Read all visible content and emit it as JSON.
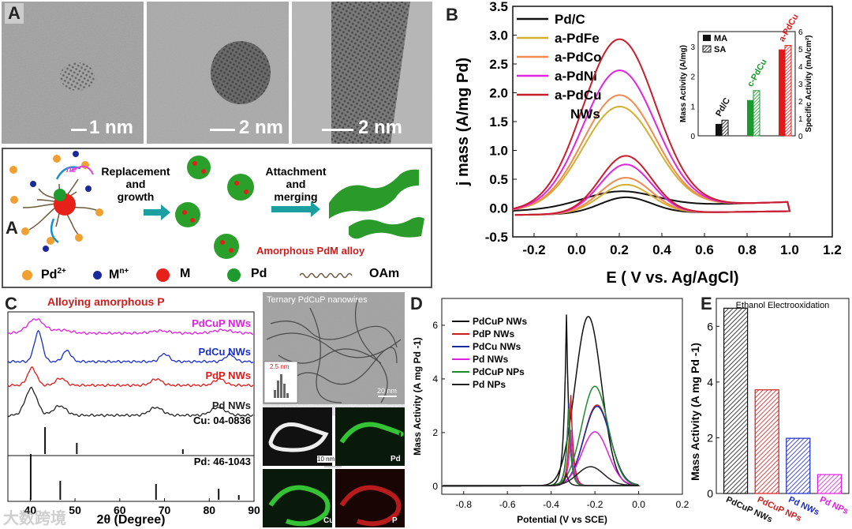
{
  "panel_labels": {
    "a": "A",
    "b": "B",
    "c": "C",
    "d": "D",
    "e": "E"
  },
  "panel_a": {
    "scale_bars": [
      "1 nm",
      "2 nm",
      "2 nm"
    ],
    "schematic": {
      "step1": "Replacement\nand\ngrowth",
      "step2": "Attachment\nand\nmerging",
      "electron": "ne",
      "product": "Amorphous PdM alloy",
      "legend": [
        {
          "symbol": "Pd",
          "sup": "2+",
          "color": "#f0a030"
        },
        {
          "symbol": "M",
          "sup": "n+",
          "color": "#1a2a9a"
        },
        {
          "symbol": "M",
          "sup": "",
          "color": "#e8201a"
        },
        {
          "symbol": "Pd",
          "sup": "",
          "color": "#1e9a2e"
        },
        {
          "symbol": "OAm",
          "sup": "",
          "color": "#6b5a3e"
        }
      ]
    }
  },
  "panel_c": {
    "header": "Alloying amorphous P",
    "traces": [
      {
        "name": "PdCuP NWs",
        "color": "#e020e0"
      },
      {
        "name": "PdCu NWs",
        "color": "#1a2ec8"
      },
      {
        "name": "PdP NWs",
        "color": "#e01a1a"
      },
      {
        "name": "Pd NWs",
        "color": "#222222"
      }
    ],
    "refs": [
      {
        "name": "Cu: 04-0836",
        "lines": [
          43.3,
          50.4,
          74.1
        ]
      },
      {
        "name": "Pd: 46-1043",
        "lines": [
          40.1,
          46.7,
          68.1,
          82.1,
          86.6
        ]
      }
    ],
    "xlabel": "2θ (Degree)",
    "xticks": [
      40,
      50,
      60,
      70,
      80,
      90
    ],
    "tem": {
      "title": "Ternary PdCuP nanowires",
      "hist_label": "2.5 nm",
      "scale": "20 nm",
      "map_scale": "10 nm",
      "maps": [
        "Pd",
        "Cu",
        "P"
      ]
    }
  },
  "chart_data": [
    {
      "id": "B",
      "type": "line",
      "xlabel": "E ( V vs. Ag/AgCl)",
      "ylabel": "j mass (A/mg Pd)",
      "xlim": [
        -0.3,
        1.2
      ],
      "ylim": [
        -0.5,
        3.5
      ],
      "xticks": [
        -0.2,
        0.0,
        0.2,
        0.4,
        0.6,
        0.8,
        1.0,
        1.2
      ],
      "yticks": [
        -0.5,
        0.0,
        0.5,
        1.0,
        1.5,
        2.0,
        2.5,
        3.0,
        3.5
      ],
      "legend": "top-left",
      "series": [
        {
          "name": "Pd/C",
          "color": "#111111",
          "peak": 0.28,
          "rev": 0.28
        },
        {
          "name": "a-PdFe",
          "color": "#d4b030",
          "peak": 1.75,
          "rev": 0.5
        },
        {
          "name": "a-PdCo",
          "color": "#f08a50",
          "peak": 1.95,
          "rev": 0.62
        },
        {
          "name": "a-PdNi",
          "color": "#e024e0",
          "peak": 2.38,
          "rev": 0.85
        },
        {
          "name": "a-PdCu",
          "color": "#c81e2e",
          "peak": 2.92,
          "rev": 1.0
        }
      ],
      "legend_extra": "NWs",
      "inset": {
        "type": "bar",
        "categories": [
          "Pd/C",
          "c-PdCu",
          "a-PdCu"
        ],
        "label_colors": [
          "#111111",
          "#1a9a2e",
          "#e01a1a"
        ],
        "bar_colors": [
          "#111111",
          "#1a9a2e",
          "#e01a1a"
        ],
        "MA": [
          0.4,
          1.2,
          2.9
        ],
        "SA": [
          0.9,
          2.6,
          5.2
        ],
        "ylabel_left": "Mass Activity (A/mg)",
        "ylabel_right": "Specific Activity (mA/cm²)",
        "ylim_left": [
          0,
          3.5
        ],
        "ylim_right": [
          0,
          6
        ],
        "left_ticks": [
          0,
          1,
          2,
          3
        ],
        "right_ticks": [
          0,
          1,
          2,
          3,
          4,
          5,
          6
        ],
        "legend": [
          "MA",
          "SA"
        ]
      }
    },
    {
      "id": "D",
      "type": "line",
      "xlabel": "Potential (V vs SCE)",
      "ylabel": "Mass Activity (A mg Pd -1)",
      "xlim": [
        -0.9,
        0.2
      ],
      "ylim": [
        -0.3,
        7.0
      ],
      "xticks": [
        -0.8,
        -0.6,
        -0.4,
        -0.2,
        0.0,
        0.2
      ],
      "yticks": [
        0,
        2,
        4,
        6
      ],
      "legend": "top-left",
      "series": [
        {
          "name": "PdCuP NWs",
          "color": "#111111",
          "peak": 6.3,
          "ep": -0.23,
          "rev": 6.4,
          "er": -0.33
        },
        {
          "name": "PdP NWs",
          "color": "#c81e1e",
          "peak": 3.0,
          "ep": -0.19,
          "rev": 3.4,
          "er": -0.31
        },
        {
          "name": "PdCu NWs",
          "color": "#1a2a9a",
          "peak": 2.95,
          "ep": -0.19,
          "rev": 3.1,
          "er": -0.32
        },
        {
          "name": "Pd NWs",
          "color": "#e020e0",
          "peak": 2.0,
          "ep": -0.2,
          "rev": 2.1,
          "er": -0.31
        },
        {
          "name": "PdCuP NPs",
          "color": "#1e8a2e",
          "peak": 3.7,
          "ep": -0.2,
          "rev": 2.9,
          "er": -0.32
        },
        {
          "name": "Pd NPs",
          "color": "#222222",
          "peak": 0.7,
          "ep": -0.22,
          "rev": 0.45,
          "er": -0.33
        }
      ]
    },
    {
      "id": "E",
      "type": "bar",
      "title": "Ethanol Electrooxidation",
      "ylabel": "Mass Activity (A mg Pd -1)",
      "ylim": [
        0,
        7
      ],
      "yticks": [
        0,
        2,
        4,
        6
      ],
      "categories": [
        "PdCuP NWs",
        "PdCuP NPs",
        "Pd NWs",
        "Pd NPs"
      ],
      "values": [
        6.65,
        3.72,
        1.98,
        0.68
      ],
      "colors": [
        "#111111",
        "#d01e1e",
        "#1a2ac8",
        "#e020e0"
      ]
    }
  ],
  "watermark": "大数跨境"
}
